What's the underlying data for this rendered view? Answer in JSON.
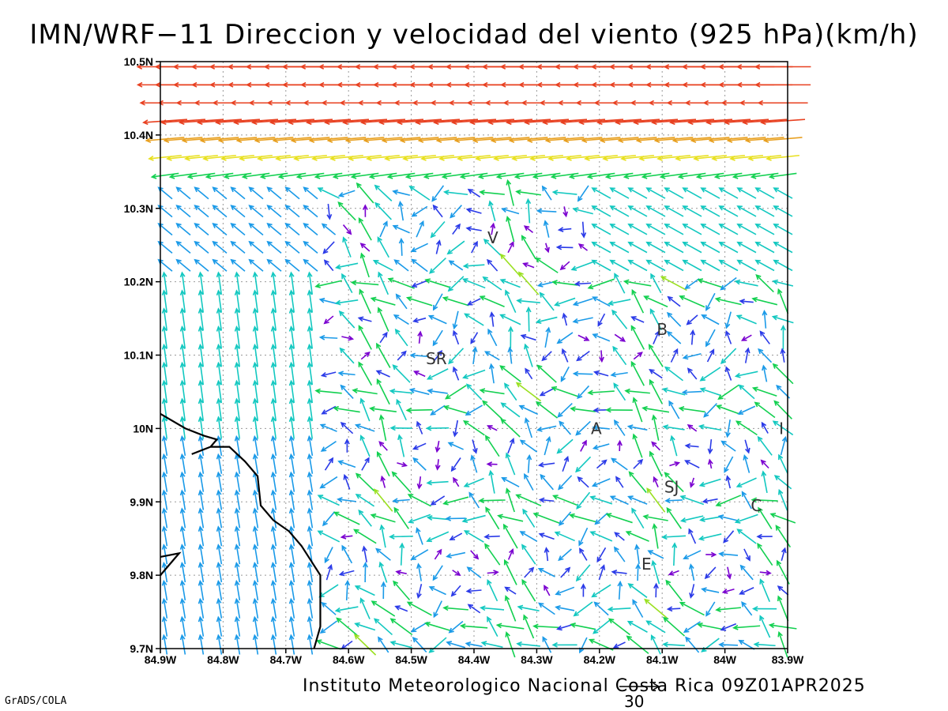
{
  "title": "IMN/WRF−11 Direccion y velocidad del viento (925 hPa)(km/h)",
  "footer": "Instituto Meteorologico Nacional Costa Rica 09Z01APR2025",
  "software": "GrADS/COLA",
  "reference_vector": {
    "label": "30",
    "speed": 30
  },
  "map": {
    "lon_range": [
      -84.9,
      -83.9
    ],
    "lat_range": [
      9.7,
      10.5
    ],
    "x_ticks": [
      "84.9W",
      "84.8W",
      "84.7W",
      "84.6W",
      "84.5W",
      "84.4W",
      "84.3W",
      "84.2W",
      "84.1W",
      "84W",
      "83.9W"
    ],
    "y_ticks": [
      "9.7N",
      "9.8N",
      "9.9N",
      "10N",
      "10.1N",
      "10.2N",
      "10.3N",
      "10.4N",
      "10.5N"
    ],
    "gridlines": true
  },
  "places": [
    {
      "label": "V",
      "lon": -84.37,
      "lat": 10.26
    },
    {
      "label": "B",
      "lon": -84.1,
      "lat": 10.135
    },
    {
      "label": "SR",
      "lon": -84.46,
      "lat": 10.095
    },
    {
      "label": "A",
      "lon": -84.205,
      "lat": 10.0
    },
    {
      "label": "I",
      "lon": -83.91,
      "lat": 10.0
    },
    {
      "label": "SJ",
      "lon": -84.085,
      "lat": 9.92
    },
    {
      "label": "C",
      "lon": -83.95,
      "lat": 9.895
    },
    {
      "label": "E",
      "lon": -84.125,
      "lat": 9.815
    }
  ],
  "speed_colors": [
    "#7a00d0",
    "#2a3ae8",
    "#1a9ae8",
    "#12c8c0",
    "#12d050",
    "#9ae020",
    "#e8e020",
    "#e8a020",
    "#e84020"
  ],
  "coastline": [
    [
      -84.9,
      10.02
    ],
    [
      -84.86,
      10.0
    ],
    [
      -84.83,
      9.99
    ],
    [
      -84.81,
      9.985
    ],
    [
      -84.82,
      9.975
    ],
    [
      -84.85,
      9.965
    ],
    [
      -84.82,
      9.975
    ],
    [
      -84.79,
      9.975
    ],
    [
      -84.765,
      9.955
    ],
    [
      -84.745,
      9.935
    ],
    [
      -84.74,
      9.895
    ],
    [
      -84.72,
      9.875
    ],
    [
      -84.695,
      9.86
    ],
    [
      -84.675,
      9.84
    ],
    [
      -84.66,
      9.82
    ],
    [
      -84.645,
      9.8
    ],
    [
      -84.645,
      9.765
    ],
    [
      -84.645,
      9.73
    ],
    [
      -84.655,
      9.7
    ]
  ],
  "coastline_fragment": [
    [
      -84.9,
      9.825
    ],
    [
      -84.87,
      9.83
    ],
    [
      -84.9,
      9.8
    ]
  ]
}
